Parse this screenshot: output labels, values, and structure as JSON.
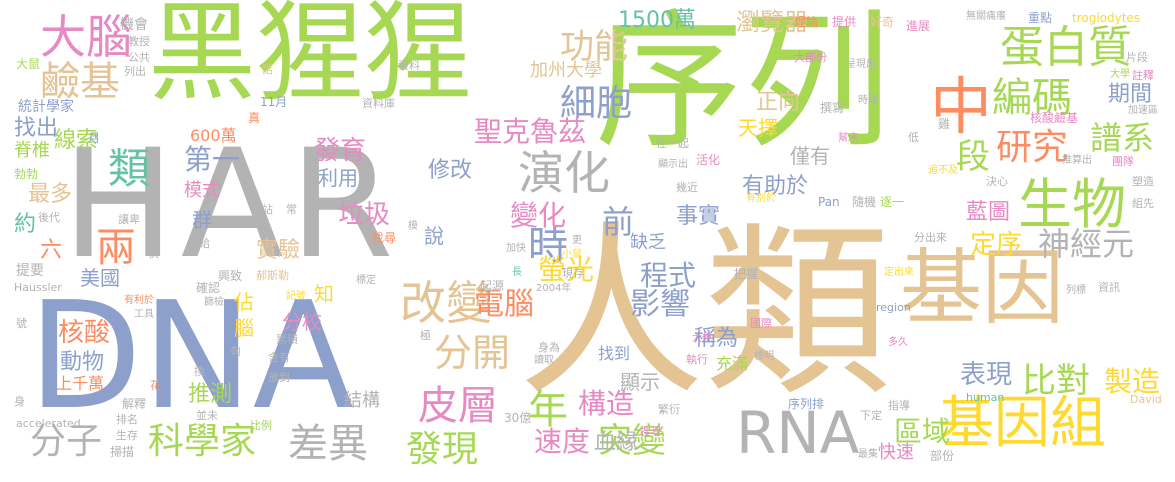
{
  "colors": {
    "background": "#ffffff",
    "green": "#a6d854",
    "blue": "#8da0cb",
    "tan": "#e5c494",
    "gray": "#b3b3b3",
    "orange": "#fc8d62",
    "teal": "#66c2a5",
    "pink": "#e78ac3",
    "yellow": "#ffd92f"
  },
  "words": [
    {
      "text": "黑猩猩",
      "color": "green"
    },
    {
      "text": "序列",
      "color": "green"
    },
    {
      "text": "HAR",
      "color": "gray"
    },
    {
      "text": "DNA",
      "color": "blue"
    },
    {
      "text": "人類",
      "color": "tan"
    },
    {
      "text": "基因",
      "color": "tan"
    },
    {
      "text": "大腦",
      "color": "pink"
    },
    {
      "text": "鹼基",
      "color": "tan"
    },
    {
      "text": "中",
      "color": "orange"
    },
    {
      "text": "蛋白質",
      "color": "green"
    },
    {
      "text": "生物",
      "color": "green"
    },
    {
      "text": "基因組",
      "color": "yellow"
    },
    {
      "text": "RNA",
      "color": "gray"
    },
    {
      "text": "類",
      "color": "teal"
    },
    {
      "text": "兩",
      "color": "orange"
    },
    {
      "text": "改變",
      "color": "tan"
    },
    {
      "text": "演化",
      "color": "gray"
    },
    {
      "text": "分開",
      "color": "tan"
    },
    {
      "text": "功能",
      "color": "tan"
    },
    {
      "text": "細胞",
      "color": "blue"
    },
    {
      "text": "編碼",
      "color": "green"
    },
    {
      "text": "研究",
      "color": "orange"
    },
    {
      "text": "譜系",
      "color": "green"
    },
    {
      "text": "段",
      "color": "green"
    },
    {
      "text": "神經元",
      "color": "gray"
    },
    {
      "text": "時",
      "color": "blue"
    },
    {
      "text": "皮層",
      "color": "pink"
    },
    {
      "text": "差異",
      "color": "gray"
    },
    {
      "text": "科學家",
      "color": "green"
    },
    {
      "text": "分子",
      "color": "gray"
    },
    {
      "text": "發現",
      "color": "green"
    },
    {
      "text": "突變",
      "color": "green"
    },
    {
      "text": "年",
      "color": "green"
    },
    {
      "text": "比對",
      "color": "green"
    },
    {
      "text": "製造",
      "color": "yellow"
    },
    {
      "text": "區域",
      "color": "green"
    },
    {
      "text": "變化",
      "color": "pink"
    },
    {
      "text": "前",
      "color": "blue"
    },
    {
      "text": "電腦",
      "color": "orange"
    },
    {
      "text": "影響",
      "color": "blue"
    },
    {
      "text": "程式",
      "color": "blue"
    },
    {
      "text": "螢光",
      "color": "yellow"
    },
    {
      "text": "聖克魯茲",
      "color": "pink"
    },
    {
      "text": "發育",
      "color": "pink"
    },
    {
      "text": "第一",
      "color": "blue"
    },
    {
      "text": "垃圾",
      "color": "pink"
    },
    {
      "text": "構造",
      "color": "pink"
    },
    {
      "text": "速度",
      "color": "pink"
    },
    {
      "text": "定序",
      "color": "yellow"
    },
    {
      "text": "表現",
      "color": "blue"
    },
    {
      "text": "藍圖",
      "color": "pink"
    },
    {
      "text": "期間",
      "color": "blue"
    },
    {
      "text": "瀏覽器",
      "color": "tan"
    },
    {
      "text": "1500萬",
      "color": "teal"
    },
    {
      "text": "加州大學",
      "color": "tan"
    },
    {
      "text": "找出",
      "color": "blue"
    },
    {
      "text": "線索",
      "color": "green"
    },
    {
      "text": "脊椎",
      "color": "green"
    },
    {
      "text": "最多",
      "color": "tan"
    },
    {
      "text": "約",
      "color": "teal"
    },
    {
      "text": "模式",
      "color": "pink"
    },
    {
      "text": "修改",
      "color": "blue"
    },
    {
      "text": "利用",
      "color": "blue"
    },
    {
      "text": "實驗",
      "color": "tan"
    },
    {
      "text": "核酸",
      "color": "orange"
    },
    {
      "text": "動物",
      "color": "blue"
    },
    {
      "text": "美國",
      "color": "blue"
    },
    {
      "text": "推測",
      "color": "green"
    },
    {
      "text": "分校",
      "color": "pink"
    },
    {
      "text": "結構",
      "color": "gray"
    },
    {
      "text": "血緣",
      "color": "gray"
    },
    {
      "text": "顯示",
      "color": "gray"
    },
    {
      "text": "稱為",
      "color": "blue"
    },
    {
      "text": "事實",
      "color": "blue"
    },
    {
      "text": "缺乏",
      "color": "blue"
    },
    {
      "text": "有助於",
      "color": "blue"
    },
    {
      "text": "天擇",
      "color": "yellow"
    },
    {
      "text": "僅有",
      "color": "gray"
    },
    {
      "text": "正向",
      "color": "tan"
    },
    {
      "text": "群",
      "color": "blue"
    },
    {
      "text": "說",
      "color": "blue"
    },
    {
      "text": "知",
      "color": "yellow"
    },
    {
      "text": "佔",
      "color": "yellow"
    },
    {
      "text": "腦",
      "color": "yellow"
    },
    {
      "text": "六",
      "color": "orange"
    },
    {
      "text": "找到",
      "color": "blue"
    },
    {
      "text": "充滿",
      "color": "green"
    },
    {
      "text": "快速",
      "color": "pink"
    },
    {
      "text": "600萬",
      "color": "orange"
    },
    {
      "text": "上千萬",
      "color": "orange"
    },
    {
      "text": "統計學家",
      "color": "blue"
    },
    {
      "text": "機會",
      "color": "gray"
    },
    {
      "text": "教授",
      "color": "gray"
    },
    {
      "text": "公共",
      "color": "gray"
    },
    {
      "text": "列出",
      "color": "gray"
    },
    {
      "text": "大鼠",
      "color": "green"
    },
    {
      "text": "話",
      "color": "tan"
    },
    {
      "text": "資料",
      "color": "gray"
    },
    {
      "text": "資料庫",
      "color": "gray"
    },
    {
      "text": "11月",
      "color": "blue"
    },
    {
      "text": "真",
      "color": "orange"
    },
    {
      "text": "月",
      "color": "blue"
    },
    {
      "text": "勃勃",
      "color": "green"
    },
    {
      "text": "後代",
      "color": "gray"
    },
    {
      "text": "讓卑",
      "color": "gray"
    },
    {
      "text": "傳給",
      "color": "gray"
    },
    {
      "text": "快",
      "color": "gray"
    },
    {
      "text": "提要",
      "color": "gray"
    },
    {
      "text": "Haussler",
      "color": "gray"
    },
    {
      "text": "有利於",
      "color": "orange"
    },
    {
      "text": "工具",
      "color": "gray"
    },
    {
      "text": "號",
      "color": "gray"
    },
    {
      "text": "花",
      "color": "orange"
    },
    {
      "text": "解釋",
      "color": "gray"
    },
    {
      "text": "排名",
      "color": "gray"
    },
    {
      "text": "生存",
      "color": "gray"
    },
    {
      "text": "掃描",
      "color": "gray"
    },
    {
      "text": "accelerated",
      "color": "gray"
    },
    {
      "text": "身",
      "color": "gray"
    },
    {
      "text": "並未",
      "color": "gray"
    },
    {
      "text": "比例",
      "color": "green"
    },
    {
      "text": "換",
      "color": "gray"
    },
    {
      "text": "句",
      "color": "gray"
    },
    {
      "text": "含有",
      "color": "gray"
    },
    {
      "text": "放到",
      "color": "gray"
    },
    {
      "text": "累積",
      "color": "gray"
    },
    {
      "text": "記號",
      "color": "yellow"
    },
    {
      "text": "郝斯勒",
      "color": "tan"
    },
    {
      "text": "篩檢",
      "color": "gray"
    },
    {
      "text": "確認",
      "color": "gray"
    },
    {
      "text": "興致",
      "color": "gray"
    },
    {
      "text": "站",
      "color": "gray"
    },
    {
      "text": "常",
      "color": "gray"
    },
    {
      "text": "模",
      "color": "gray"
    },
    {
      "text": "找尋",
      "color": "orange"
    },
    {
      "text": "標定",
      "color": "gray"
    },
    {
      "text": "更",
      "color": "gray"
    },
    {
      "text": "小鼠",
      "color": "yellow"
    },
    {
      "text": "加快",
      "color": "gray"
    },
    {
      "text": "長",
      "color": "teal"
    },
    {
      "text": "起源",
      "color": "gray"
    },
    {
      "text": "2004年",
      "color": "gray"
    },
    {
      "text": "現存",
      "color": "gray"
    },
    {
      "text": "極",
      "color": "gray"
    },
    {
      "text": "30億",
      "color": "gray"
    },
    {
      "text": "讀取",
      "color": "gray"
    },
    {
      "text": "身為",
      "color": "gray"
    },
    {
      "text": "繁衍",
      "color": "gray"
    },
    {
      "text": "搜尋",
      "color": "pink"
    },
    {
      "text": "最集",
      "color": "gray"
    },
    {
      "text": "執行",
      "color": "pink"
    },
    {
      "text": "大規",
      "color": "pink"
    },
    {
      "text": "標明",
      "color": "gray"
    },
    {
      "text": "國際",
      "color": "pink"
    },
    {
      "text": "序列排",
      "color": "blue"
    },
    {
      "text": "部份",
      "color": "gray"
    },
    {
      "text": "human",
      "color": "teal"
    },
    {
      "text": "David",
      "color": "tan"
    },
    {
      "text": "下定",
      "color": "gray"
    },
    {
      "text": "指導",
      "color": "gray"
    },
    {
      "text": "多久",
      "color": "pink"
    },
    {
      "text": "region",
      "color": "blue"
    },
    {
      "text": "定出來",
      "color": "yellow"
    },
    {
      "text": "分出來",
      "color": "gray"
    },
    {
      "text": "列標",
      "color": "gray"
    },
    {
      "text": "資訊",
      "color": "gray"
    },
    {
      "text": "把握",
      "color": "gray"
    },
    {
      "text": "Pan",
      "color": "blue"
    },
    {
      "text": "隨機",
      "color": "gray"
    },
    {
      "text": "逐一",
      "color": "green"
    },
    {
      "text": "有別於",
      "color": "yellow"
    },
    {
      "text": "幾近",
      "color": "gray"
    },
    {
      "text": "顯示出",
      "color": "gray"
    },
    {
      "text": "在一起",
      "color": "gray"
    },
    {
      "text": "活化",
      "color": "pink"
    },
    {
      "text": "追不及",
      "color": "yellow"
    },
    {
      "text": "決心",
      "color": "gray"
    },
    {
      "text": "推算出",
      "color": "gray"
    },
    {
      "text": "團隊",
      "color": "pink"
    },
    {
      "text": "塑造",
      "color": "gray"
    },
    {
      "text": "組先",
      "color": "gray"
    },
    {
      "text": "低",
      "color": "gray"
    },
    {
      "text": "幫序",
      "color": "pink"
    },
    {
      "text": "核酸鹼基",
      "color": "pink"
    },
    {
      "text": "時鐘",
      "color": "gray"
    },
    {
      "text": "撰寫",
      "color": "gray"
    },
    {
      "text": "雞",
      "color": "gray"
    },
    {
      "text": "呈現出",
      "color": "gray"
    },
    {
      "text": "大部份",
      "color": "pink"
    },
    {
      "text": "理論",
      "color": "orange"
    },
    {
      "text": "提供",
      "color": "pink"
    },
    {
      "text": "好奇",
      "color": "tan"
    },
    {
      "text": "進展",
      "color": "pink"
    },
    {
      "text": "無關痛癢",
      "color": "gray"
    },
    {
      "text": "重點",
      "color": "blue"
    },
    {
      "text": "troglodytes",
      "color": "yellow"
    },
    {
      "text": "片段",
      "color": "gray"
    },
    {
      "text": "大學",
      "color": "green"
    },
    {
      "text": "註釋",
      "color": "pink"
    },
    {
      "text": "加速區",
      "color": "gray"
    }
  ]
}
